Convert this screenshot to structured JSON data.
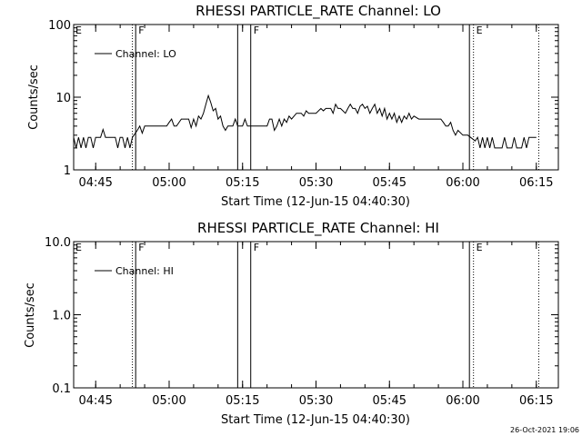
{
  "chart_data": [
    {
      "type": "line",
      "title": "RHESSI PARTICLE_RATE Channel: LO",
      "xlabel": "Start Time (12-Jun-15 04:40:30)",
      "ylabel": "Counts/sec",
      "yscale": "log",
      "ylim": [
        1,
        100
      ],
      "xlim": [
        "04:40:30",
        "06:19:30"
      ],
      "x_ticks": [
        "04:45",
        "05:00",
        "05:15",
        "05:30",
        "05:45",
        "06:00",
        "06:15"
      ],
      "y_ticks": [
        "1",
        "10",
        "100"
      ],
      "legend": {
        "entries": [
          "Channel: LO"
        ],
        "placement": "top-left"
      },
      "markers": [
        {
          "time": "04:52:30",
          "style": "dotted",
          "label": ""
        },
        {
          "time": "04:53:10",
          "style": "solid",
          "label": "F"
        },
        {
          "time": "05:14:00",
          "style": "solid",
          "label": ""
        },
        {
          "time": "05:16:40",
          "style": "solid",
          "label": "F"
        },
        {
          "time": "06:01:20",
          "style": "solid",
          "label": ""
        },
        {
          "time": "06:02:10",
          "style": "dotted",
          "label": "E"
        },
        {
          "time": "06:15:30",
          "style": "dotted",
          "label": ""
        }
      ],
      "edge_labels": {
        "left": "E"
      },
      "series": [
        {
          "values": [
            [
              "04:40:30",
              2.8
            ],
            [
              "04:41:00",
              2.0
            ],
            [
              "04:41:30",
              2.8
            ],
            [
              "04:42:00",
              2.0
            ],
            [
              "04:42:30",
              2.8
            ],
            [
              "04:43:00",
              2.0
            ],
            [
              "04:43:30",
              2.8
            ],
            [
              "04:44:00",
              2.8
            ],
            [
              "04:44:30",
              2.0
            ],
            [
              "04:45:00",
              2.8
            ],
            [
              "04:45:30",
              2.8
            ],
            [
              "04:46:00",
              2.8
            ],
            [
              "04:46:30",
              3.6
            ],
            [
              "04:47:00",
              2.8
            ],
            [
              "04:47:30",
              2.8
            ],
            [
              "04:48:00",
              2.8
            ],
            [
              "04:49:00",
              2.8
            ],
            [
              "04:49:30",
              2.0
            ],
            [
              "04:50:00",
              2.8
            ],
            [
              "04:50:30",
              2.8
            ],
            [
              "04:51:00",
              2.0
            ],
            [
              "04:51:30",
              2.8
            ],
            [
              "04:52:00",
              2.0
            ],
            [
              "04:52:30",
              2.8
            ],
            [
              "04:53:30",
              3.5
            ],
            [
              "04:54:00",
              4.0
            ],
            [
              "04:54:30",
              3.2
            ],
            [
              "04:55:00",
              4.0
            ],
            [
              "04:56:00",
              4.0
            ],
            [
              "04:57:00",
              4.0
            ],
            [
              "04:58:00",
              4.0
            ],
            [
              "04:59:00",
              4.0
            ],
            [
              "04:59:30",
              4.0
            ],
            [
              "05:00:00",
              4.5
            ],
            [
              "05:00:30",
              5.0
            ],
            [
              "05:01:00",
              4.0
            ],
            [
              "05:01:30",
              4.0
            ],
            [
              "05:02:30",
              5.0
            ],
            [
              "05:03:00",
              5.0
            ],
            [
              "05:04:00",
              5.0
            ],
            [
              "05:04:30",
              3.8
            ],
            [
              "05:05:00",
              5.0
            ],
            [
              "05:05:30",
              4.0
            ],
            [
              "05:06:00",
              5.5
            ],
            [
              "05:06:30",
              5.0
            ],
            [
              "05:07:00",
              6.0
            ],
            [
              "05:07:30",
              8.0
            ],
            [
              "05:08:00",
              10.5
            ],
            [
              "05:08:30",
              8.5
            ],
            [
              "05:09:00",
              6.5
            ],
            [
              "05:09:30",
              7.0
            ],
            [
              "05:10:00",
              5.0
            ],
            [
              "05:10:30",
              5.5
            ],
            [
              "05:11:00",
              4.0
            ],
            [
              "05:11:30",
              3.5
            ],
            [
              "05:12:00",
              4.0
            ],
            [
              "05:12:30",
              4.0
            ],
            [
              "05:13:00",
              4.0
            ],
            [
              "05:13:30",
              5.0
            ],
            [
              "05:14:00",
              4.0
            ],
            [
              "05:15:00",
              4.0
            ],
            [
              "05:15:30",
              5.0
            ],
            [
              "05:16:00",
              4.0
            ],
            [
              "05:17:00",
              4.0
            ],
            [
              "05:18:00",
              4.0
            ],
            [
              "05:19:00",
              4.0
            ],
            [
              "05:20:00",
              4.0
            ],
            [
              "05:20:30",
              5.0
            ],
            [
              "05:21:00",
              5.0
            ],
            [
              "05:21:30",
              3.5
            ],
            [
              "05:22:00",
              4.0
            ],
            [
              "05:22:30",
              5.0
            ],
            [
              "05:23:00",
              4.0
            ],
            [
              "05:23:30",
              5.0
            ],
            [
              "05:24:00",
              4.5
            ],
            [
              "05:24:30",
              5.5
            ],
            [
              "05:25:00",
              5.0
            ],
            [
              "05:26:00",
              6.0
            ],
            [
              "05:27:00",
              6.0
            ],
            [
              "05:27:30",
              5.5
            ],
            [
              "05:28:00",
              6.5
            ],
            [
              "05:28:30",
              6.0
            ],
            [
              "05:29:00",
              6.0
            ],
            [
              "05:30:00",
              6.0
            ],
            [
              "05:31:00",
              7.0
            ],
            [
              "05:31:30",
              6.5
            ],
            [
              "05:32:00",
              7.0
            ],
            [
              "05:33:00",
              7.0
            ],
            [
              "05:33:30",
              6.0
            ],
            [
              "05:34:00",
              8.0
            ],
            [
              "05:34:30",
              7.0
            ],
            [
              "05:35:00",
              7.0
            ],
            [
              "05:35:30",
              6.5
            ],
            [
              "05:36:00",
              6.0
            ],
            [
              "05:36:30",
              7.0
            ],
            [
              "05:37:00",
              8.0
            ],
            [
              "05:37:30",
              7.0
            ],
            [
              "05:38:00",
              7.0
            ],
            [
              "05:38:30",
              6.0
            ],
            [
              "05:39:00",
              7.5
            ],
            [
              "05:39:30",
              8.0
            ],
            [
              "05:40:00",
              7.0
            ],
            [
              "05:40:30",
              7.5
            ],
            [
              "05:41:00",
              6.0
            ],
            [
              "05:41:30",
              7.0
            ],
            [
              "05:42:00",
              8.0
            ],
            [
              "05:42:30",
              6.0
            ],
            [
              "05:43:00",
              7.0
            ],
            [
              "05:43:30",
              5.5
            ],
            [
              "05:44:00",
              7.0
            ],
            [
              "05:44:30",
              5.0
            ],
            [
              "05:45:00",
              6.0
            ],
            [
              "05:45:30",
              5.0
            ],
            [
              "05:46:00",
              6.0
            ],
            [
              "05:46:30",
              4.5
            ],
            [
              "05:47:00",
              5.5
            ],
            [
              "05:47:30",
              4.5
            ],
            [
              "05:48:00",
              5.5
            ],
            [
              "05:48:30",
              5.0
            ],
            [
              "05:49:00",
              6.0
            ],
            [
              "05:49:30",
              5.0
            ],
            [
              "05:50:00",
              5.5
            ],
            [
              "05:51:00",
              5.0
            ],
            [
              "05:52:00",
              5.0
            ],
            [
              "05:53:00",
              5.0
            ],
            [
              "05:54:00",
              5.0
            ],
            [
              "05:55:00",
              5.0
            ],
            [
              "05:55:30",
              5.0
            ],
            [
              "05:56:00",
              4.5
            ],
            [
              "05:56:30",
              4.0
            ],
            [
              "05:57:00",
              4.0
            ],
            [
              "05:57:30",
              4.5
            ],
            [
              "05:58:00",
              3.5
            ],
            [
              "05:58:30",
              3.0
            ],
            [
              "05:59:00",
              3.5
            ],
            [
              "06:00:00",
              3.0
            ],
            [
              "06:01:00",
              3.0
            ],
            [
              "06:02:30",
              2.5
            ],
            [
              "06:03:00",
              2.8
            ],
            [
              "06:03:30",
              2.0
            ],
            [
              "06:04:00",
              2.8
            ],
            [
              "06:04:30",
              2.0
            ],
            [
              "06:05:00",
              2.8
            ],
            [
              "06:05:30",
              2.0
            ],
            [
              "06:06:00",
              2.8
            ],
            [
              "06:06:30",
              2.0
            ],
            [
              "06:07:00",
              2.0
            ],
            [
              "06:08:00",
              2.0
            ],
            [
              "06:08:30",
              2.8
            ],
            [
              "06:09:00",
              2.0
            ],
            [
              "06:10:00",
              2.0
            ],
            [
              "06:10:30",
              2.8
            ],
            [
              "06:11:00",
              2.0
            ],
            [
              "06:12:00",
              2.0
            ],
            [
              "06:12:30",
              2.8
            ],
            [
              "06:13:00",
              2.0
            ],
            [
              "06:13:30",
              2.8
            ],
            [
              "06:14:00",
              2.8
            ],
            [
              "06:15:00",
              2.8
            ]
          ]
        }
      ]
    },
    {
      "type": "line",
      "title": "RHESSI PARTICLE_RATE Channel: HI",
      "xlabel": "Start Time (12-Jun-15 04:40:30)",
      "ylabel": "Counts/sec",
      "yscale": "log",
      "ylim": [
        0.1,
        10.0
      ],
      "xlim": [
        "04:40:30",
        "06:19:30"
      ],
      "x_ticks": [
        "04:45",
        "05:00",
        "05:15",
        "05:30",
        "05:45",
        "06:00",
        "06:15"
      ],
      "y_ticks": [
        "0.1",
        "1.0",
        "10.0"
      ],
      "legend": {
        "entries": [
          "Channel: HI"
        ],
        "placement": "top-left"
      },
      "markers": [
        {
          "time": "04:52:30",
          "style": "dotted",
          "label": ""
        },
        {
          "time": "04:53:10",
          "style": "solid",
          "label": "F"
        },
        {
          "time": "05:14:00",
          "style": "solid",
          "label": ""
        },
        {
          "time": "05:16:40",
          "style": "solid",
          "label": "F"
        },
        {
          "time": "06:01:20",
          "style": "solid",
          "label": ""
        },
        {
          "time": "06:02:10",
          "style": "dotted",
          "label": "E"
        },
        {
          "time": "06:15:30",
          "style": "dotted",
          "label": ""
        }
      ],
      "edge_labels": {
        "left": "E"
      },
      "series": [
        {
          "values": []
        }
      ]
    }
  ],
  "footer": {
    "timestamp": "26-Oct-2021 19:06"
  }
}
